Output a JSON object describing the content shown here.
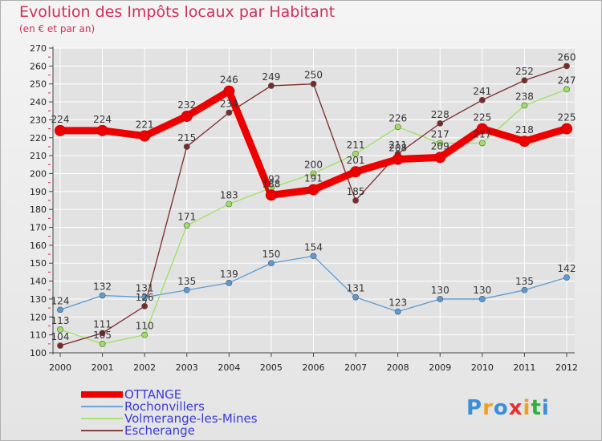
{
  "chart_data": {
    "type": "line",
    "title": "Evolution des Impôts locaux par Habitant",
    "subtitle": "(en € et par an)",
    "xlabel": "",
    "ylabel": "",
    "categories": [
      "2000",
      "2001",
      "2002",
      "2003",
      "2004",
      "2005",
      "2006",
      "2007",
      "2008",
      "2009",
      "2010",
      "2011",
      "2012"
    ],
    "ylim": [
      100,
      270
    ],
    "yticks": [
      100,
      110,
      120,
      130,
      140,
      150,
      160,
      170,
      180,
      190,
      200,
      210,
      220,
      230,
      240,
      250,
      260,
      270
    ],
    "grid": true,
    "legend_position": "bottom-left",
    "series": [
      {
        "name": "OTTANGE",
        "color": "#ee0000",
        "values": [
          224,
          224,
          221,
          232,
          246,
          188,
          191,
          201,
          208,
          209,
          225,
          218,
          225
        ]
      },
      {
        "name": "Rochonvillers",
        "color": "#5a9bd4",
        "values": [
          124,
          132,
          131,
          135,
          139,
          150,
          154,
          131,
          123,
          130,
          130,
          135,
          142
        ]
      },
      {
        "name": "Volmerange-les-Mines",
        "color": "#9ee060",
        "values": [
          113,
          105,
          110,
          171,
          183,
          192,
          200,
          211,
          226,
          217,
          217,
          238,
          247
        ]
      },
      {
        "name": "Escherange",
        "color": "#7a2a2a",
        "values": [
          104,
          111,
          126,
          215,
          234,
          249,
          250,
          185,
          211,
          228,
          241,
          252,
          260
        ]
      }
    ]
  },
  "brand": {
    "text": "Proxiti"
  }
}
